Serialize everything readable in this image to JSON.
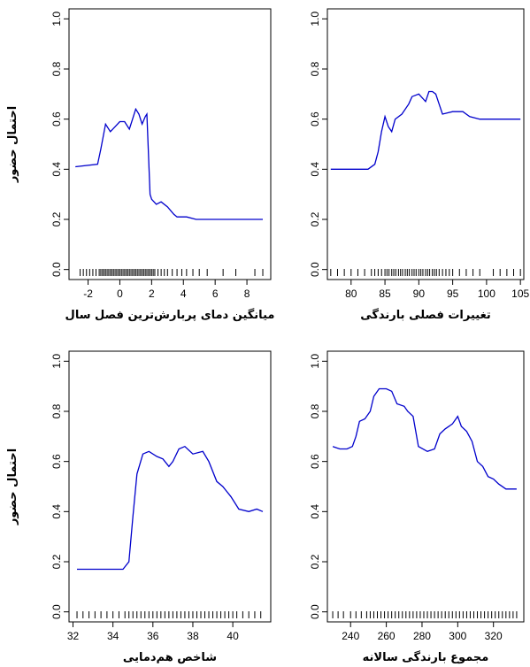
{
  "chart_data": [
    {
      "type": "line",
      "xlabel": "میانگین دمای پربارش‌ترین فصل سال",
      "ylabel": "احتمال حضور",
      "xlim": [
        -3.2,
        9.5
      ],
      "ylim": [
        -0.04,
        1.04
      ],
      "xticks": [
        -2,
        0,
        2,
        4,
        6,
        8
      ],
      "yticks": [
        0.0,
        0.2,
        0.4,
        0.6,
        0.8,
        1.0
      ],
      "line_color": "#0000cc",
      "series": [
        {
          "x": [
            -2.8,
            -1.4,
            -1.2,
            -0.9,
            -0.6,
            -0.3,
            0.0,
            0.3,
            0.6,
            0.8,
            1.0,
            1.2,
            1.4,
            1.6,
            1.7,
            1.9,
            2.0,
            2.3,
            2.6,
            3.0,
            3.4,
            3.6,
            3.9,
            4.2,
            4.8,
            5.5,
            7.0,
            9.0
          ],
          "y": [
            0.41,
            0.42,
            0.48,
            0.58,
            0.55,
            0.57,
            0.59,
            0.59,
            0.56,
            0.6,
            0.64,
            0.62,
            0.58,
            0.61,
            0.62,
            0.3,
            0.28,
            0.26,
            0.27,
            0.25,
            0.22,
            0.21,
            0.21,
            0.21,
            0.2,
            0.2,
            0.2,
            0.2
          ]
        }
      ],
      "rug": [
        -2.5,
        -2.3,
        -2.1,
        -1.9,
        -1.7,
        -1.5,
        -1.3,
        -1.2,
        -1.1,
        -1.0,
        -0.9,
        -0.8,
        -0.7,
        -0.6,
        -0.5,
        -0.4,
        -0.3,
        -0.2,
        -0.1,
        0.0,
        0.1,
        0.2,
        0.3,
        0.4,
        0.5,
        0.6,
        0.7,
        0.8,
        0.9,
        1.0,
        1.1,
        1.2,
        1.3,
        1.4,
        1.5,
        1.6,
        1.7,
        1.8,
        1.9,
        2.0,
        2.1,
        2.2,
        2.4,
        2.6,
        2.8,
        3.0,
        3.3,
        3.6,
        3.9,
        4.2,
        4.6,
        5.0,
        5.5,
        6.5,
        7.3,
        8.5,
        9.0
      ]
    },
    {
      "type": "line",
      "xlabel": "تغییرات فصلی بارندگی",
      "ylabel": "",
      "xlim": [
        76.5,
        105.5
      ],
      "ylim": [
        -0.04,
        1.04
      ],
      "xticks": [
        80,
        85,
        90,
        95,
        100,
        105
      ],
      "yticks": [
        0.0,
        0.2,
        0.4,
        0.6,
        0.8,
        1.0
      ],
      "line_color": "#0000cc",
      "series": [
        {
          "x": [
            77.0,
            82.5,
            83.5,
            84.0,
            84.5,
            85.0,
            85.5,
            86.0,
            86.5,
            87.5,
            88.5,
            89.0,
            90.0,
            91.0,
            91.5,
            92.0,
            92.5,
            93.0,
            93.5,
            95.0,
            96.5,
            97.5,
            99.0,
            105.0
          ],
          "y": [
            0.4,
            0.4,
            0.42,
            0.47,
            0.55,
            0.61,
            0.57,
            0.55,
            0.6,
            0.62,
            0.66,
            0.69,
            0.7,
            0.67,
            0.71,
            0.71,
            0.7,
            0.66,
            0.62,
            0.63,
            0.63,
            0.61,
            0.6,
            0.6
          ]
        }
      ],
      "rug": [
        77,
        78,
        79,
        80,
        81,
        82,
        83,
        83.5,
        84,
        84.5,
        85,
        85.3,
        85.6,
        86,
        86.3,
        86.6,
        87,
        87.3,
        87.6,
        88,
        88.3,
        88.6,
        89,
        89.3,
        89.6,
        90,
        90.3,
        90.6,
        91,
        91.3,
        91.6,
        92,
        92.3,
        92.6,
        93,
        93.5,
        94,
        94.5,
        95,
        96,
        97,
        98,
        99,
        101,
        102,
        103,
        104,
        105
      ]
    },
    {
      "type": "line",
      "xlabel": "شاخص هم‌دمایی",
      "ylabel": "احتمال حضور",
      "xlim": [
        31.8,
        41.9
      ],
      "ylim": [
        -0.04,
        1.04
      ],
      "xticks": [
        32,
        34,
        36,
        38,
        40
      ],
      "yticks": [
        0.0,
        0.2,
        0.4,
        0.6,
        0.8,
        1.0
      ],
      "line_color": "#0000cc",
      "series": [
        {
          "x": [
            32.2,
            34.5,
            34.8,
            35.0,
            35.2,
            35.5,
            35.8,
            36.2,
            36.5,
            36.8,
            37.0,
            37.3,
            37.6,
            38.0,
            38.5,
            38.8,
            39.2,
            39.5,
            39.9,
            40.3,
            40.8,
            41.2,
            41.5
          ],
          "y": [
            0.17,
            0.17,
            0.2,
            0.38,
            0.55,
            0.63,
            0.64,
            0.62,
            0.61,
            0.58,
            0.6,
            0.65,
            0.66,
            0.63,
            0.64,
            0.6,
            0.52,
            0.5,
            0.46,
            0.41,
            0.4,
            0.41,
            0.4
          ]
        }
      ],
      "rug": [
        32.2,
        32.5,
        32.8,
        33.1,
        33.4,
        33.7,
        34.0,
        34.3,
        34.6,
        34.8,
        35.0,
        35.2,
        35.4,
        35.6,
        35.8,
        36.0,
        36.2,
        36.4,
        36.6,
        36.8,
        37.0,
        37.2,
        37.4,
        37.6,
        37.8,
        38.0,
        38.2,
        38.4,
        38.6,
        38.8,
        39.0,
        39.2,
        39.4,
        39.6,
        39.8,
        40.0,
        40.2,
        40.5,
        40.8,
        41.1,
        41.4
      ]
    },
    {
      "type": "line",
      "xlabel": "مجموع بارندگی سالانه",
      "ylabel": "",
      "xlim": [
        227,
        337
      ],
      "ylim": [
        -0.04,
        1.04
      ],
      "xticks": [
        240,
        260,
        280,
        300,
        320
      ],
      "yticks": [
        0.0,
        0.2,
        0.4,
        0.6,
        0.8,
        1.0
      ],
      "line_color": "#0000cc",
      "series": [
        {
          "x": [
            230,
            234,
            238,
            241,
            243,
            245,
            248,
            251,
            253,
            256,
            260,
            263,
            266,
            270,
            272,
            275,
            278,
            283,
            287,
            290,
            293,
            297,
            300,
            302,
            305,
            308,
            311,
            314,
            317,
            320,
            323,
            327,
            333
          ],
          "y": [
            0.66,
            0.65,
            0.65,
            0.66,
            0.7,
            0.76,
            0.77,
            0.8,
            0.86,
            0.89,
            0.89,
            0.88,
            0.83,
            0.82,
            0.8,
            0.78,
            0.66,
            0.64,
            0.65,
            0.71,
            0.73,
            0.75,
            0.78,
            0.74,
            0.72,
            0.68,
            0.6,
            0.58,
            0.54,
            0.53,
            0.51,
            0.49,
            0.49
          ]
        }
      ],
      "rug": [
        230,
        233,
        236,
        240,
        243,
        246,
        249,
        251,
        253,
        255,
        257,
        259,
        261,
        263,
        265,
        267,
        269,
        271,
        273,
        275,
        277,
        279,
        281,
        283,
        285,
        287,
        289,
        291,
        293,
        295,
        297,
        299,
        301,
        303,
        305,
        307,
        309,
        311,
        313,
        315,
        317,
        319,
        321,
        323,
        325,
        327,
        329,
        331,
        333
      ]
    }
  ]
}
